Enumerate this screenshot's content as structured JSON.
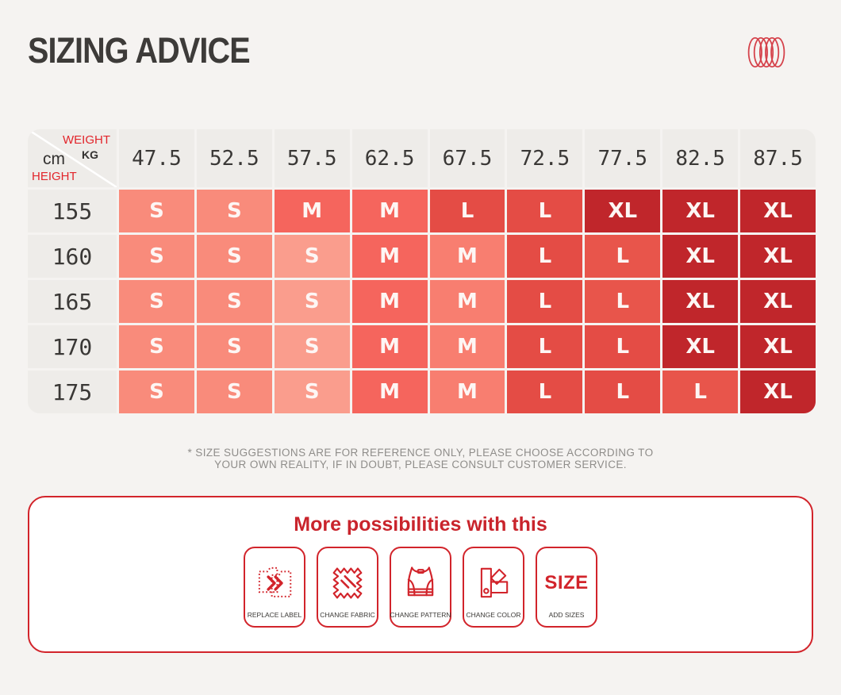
{
  "page": {
    "title": "SIZING ADVICE"
  },
  "logo": {
    "color": "#d5424b"
  },
  "size_table": {
    "corner": {
      "weight_label": "WEIGHT",
      "weight_unit": "KG",
      "height_unit": "cm",
      "height_label": "HEIGHT"
    },
    "weight_headers": [
      "47.5",
      "52.5",
      "57.5",
      "62.5",
      "67.5",
      "72.5",
      "77.5",
      "82.5",
      "87.5"
    ],
    "rows": [
      {
        "height": "155",
        "cells": [
          {
            "size": "S",
            "color": "#f98b7b"
          },
          {
            "size": "S",
            "color": "#f98b7b"
          },
          {
            "size": "M",
            "color": "#f5655d"
          },
          {
            "size": "M",
            "color": "#f5655d"
          },
          {
            "size": "L",
            "color": "#e44c45"
          },
          {
            "size": "L",
            "color": "#e44c45"
          },
          {
            "size": "XL",
            "color": "#c0262b"
          },
          {
            "size": "XL",
            "color": "#c0262b"
          },
          {
            "size": "XL",
            "color": "#c0262b"
          }
        ]
      },
      {
        "height": "160",
        "cells": [
          {
            "size": "S",
            "color": "#f98b7b"
          },
          {
            "size": "S",
            "color": "#f98b7b"
          },
          {
            "size": "S",
            "color": "#fa9d8d"
          },
          {
            "size": "M",
            "color": "#f5655d"
          },
          {
            "size": "M",
            "color": "#f87e70"
          },
          {
            "size": "L",
            "color": "#e44c45"
          },
          {
            "size": "L",
            "color": "#e8554b"
          },
          {
            "size": "XL",
            "color": "#c0262b"
          },
          {
            "size": "XL",
            "color": "#c0262b"
          }
        ]
      },
      {
        "height": "165",
        "cells": [
          {
            "size": "S",
            "color": "#f98b7b"
          },
          {
            "size": "S",
            "color": "#f98b7b"
          },
          {
            "size": "S",
            "color": "#fa9d8d"
          },
          {
            "size": "M",
            "color": "#f5655d"
          },
          {
            "size": "M",
            "color": "#f87e70"
          },
          {
            "size": "L",
            "color": "#e44c45"
          },
          {
            "size": "L",
            "color": "#e8554b"
          },
          {
            "size": "XL",
            "color": "#c0262b"
          },
          {
            "size": "XL",
            "color": "#c0262b"
          }
        ]
      },
      {
        "height": "170",
        "cells": [
          {
            "size": "S",
            "color": "#f98b7b"
          },
          {
            "size": "S",
            "color": "#f98b7b"
          },
          {
            "size": "S",
            "color": "#fa9d8d"
          },
          {
            "size": "M",
            "color": "#f5655d"
          },
          {
            "size": "M",
            "color": "#f87e70"
          },
          {
            "size": "L",
            "color": "#e44c45"
          },
          {
            "size": "L",
            "color": "#e44c45"
          },
          {
            "size": "XL",
            "color": "#c0262b"
          },
          {
            "size": "XL",
            "color": "#c0262b"
          }
        ]
      },
      {
        "height": "175",
        "cells": [
          {
            "size": "S",
            "color": "#f98b7b"
          },
          {
            "size": "S",
            "color": "#f98b7b"
          },
          {
            "size": "S",
            "color": "#fa9d8d"
          },
          {
            "size": "M",
            "color": "#f5655d"
          },
          {
            "size": "M",
            "color": "#f87e70"
          },
          {
            "size": "L",
            "color": "#e44c45"
          },
          {
            "size": "L",
            "color": "#e44c45"
          },
          {
            "size": "L",
            "color": "#e8554b"
          },
          {
            "size": "XL",
            "color": "#c0262b"
          }
        ]
      }
    ]
  },
  "footnote": {
    "line1": "* SIZE SUGGESTIONS ARE FOR REFERENCE ONLY, PLEASE CHOOSE ACCORDING TO",
    "line2": "YOUR OWN REALITY, IF IN DOUBT, PLEASE CONSULT CUSTOMER SERVICE."
  },
  "promo_box": {
    "title": "More possibilities with this",
    "accent_color": "#d2242b",
    "tiles": [
      {
        "label": "REPLACE LABEL",
        "icon": "replace-label-icon"
      },
      {
        "label": "CHANGE FABRIC",
        "icon": "change-fabric-icon"
      },
      {
        "label": "CHANGE PATTERN",
        "icon": "change-pattern-icon"
      },
      {
        "label": "CHANGE COLOR",
        "icon": "change-color-icon"
      },
      {
        "label": "ADD SIZES",
        "icon": "add-sizes-icon",
        "big_text": "SIZE"
      }
    ]
  }
}
